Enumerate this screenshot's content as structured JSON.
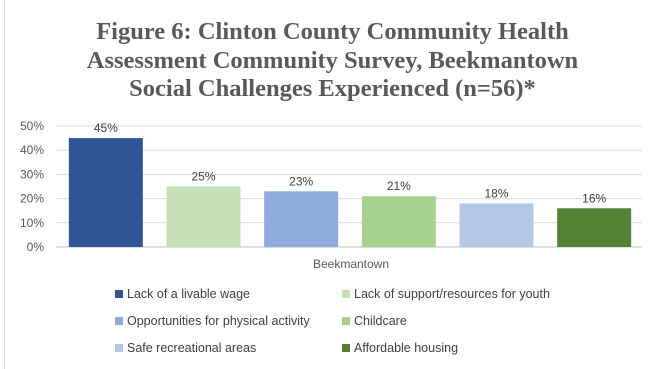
{
  "chart_data": {
    "type": "bar",
    "title_lines": [
      "Figure 6: Clinton County Community Health",
      "Assessment Community Survey, Beekmantown",
      "Social Challenges Experienced (n=56)*"
    ],
    "xlabel": "Beekmantown",
    "ylabel": "",
    "ylim": [
      0,
      50
    ],
    "yticks": [
      "0%",
      "10%",
      "20%",
      "30%",
      "40%",
      "50%"
    ],
    "grid": true,
    "legend_position": "bottom",
    "series": [
      {
        "name": "Lack of a livable wage",
        "value": 45,
        "label": "45%",
        "color": "#2f5597"
      },
      {
        "name": "Lack of support/resources for youth",
        "value": 25,
        "label": "25%",
        "color": "#c5e0b4"
      },
      {
        "name": "Opportunities for physical activity",
        "value": 23,
        "label": "23%",
        "color": "#8faadc"
      },
      {
        "name": "Childcare",
        "value": 21,
        "label": "21%",
        "color": "#a9d18e"
      },
      {
        "name": "Safe recreational areas",
        "value": 18,
        "label": "18%",
        "color": "#b4c7e7"
      },
      {
        "name": "Affordable housing",
        "value": 16,
        "label": "16%",
        "color": "#548235"
      }
    ]
  }
}
